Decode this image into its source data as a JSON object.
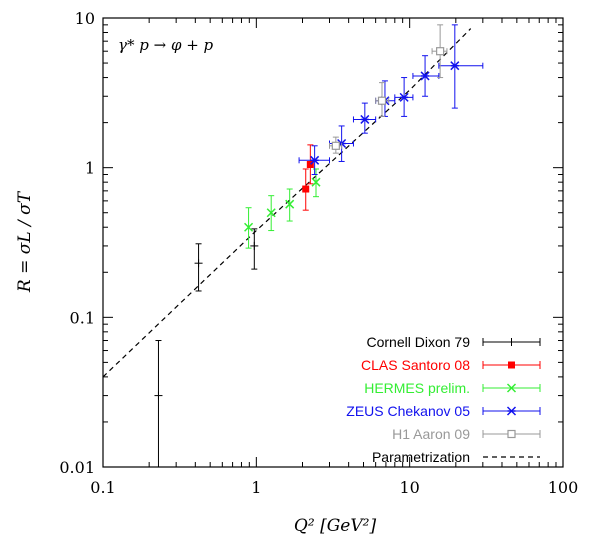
{
  "chart_data": {
    "type": "scatter",
    "title": "",
    "reaction_label": "γ* p → φ + p",
    "xlabel": "Q²   [GeV²]",
    "ylabel": "R = σL / σT",
    "xscale": "log",
    "yscale": "log",
    "xlim": [
      0.1,
      100
    ],
    "ylim": [
      0.01,
      10
    ],
    "xticks": [
      {
        "value": 0.1,
        "label": "0.1"
      },
      {
        "value": 1,
        "label": "1"
      },
      {
        "value": 10,
        "label": "10"
      },
      {
        "value": 100,
        "label": "100"
      }
    ],
    "yticks": [
      {
        "value": 0.01,
        "label": "0.01"
      },
      {
        "value": 0.1,
        "label": "0.1"
      },
      {
        "value": 1,
        "label": "1"
      },
      {
        "value": 10,
        "label": "10"
      }
    ],
    "grid": false,
    "legend_position": "bottom-right",
    "series": [
      {
        "name": "Cornell Dixon 79",
        "color": "#000000",
        "marker": "plus",
        "points": [
          {
            "x": 0.23,
            "y": 0.03,
            "ylo": 0.0,
            "yhi": 0.07
          },
          {
            "x": 0.42,
            "y": 0.23,
            "ylo": 0.15,
            "yhi": 0.31
          },
          {
            "x": 0.97,
            "y": 0.3,
            "ylo": 0.21,
            "yhi": 0.39
          }
        ]
      },
      {
        "name": "CLAS Santoro 08",
        "color": "#ff0000",
        "marker": "filled-square",
        "points": [
          {
            "x": 2.1,
            "y": 0.72,
            "ylo": 0.52,
            "yhi": 0.98
          },
          {
            "x": 2.25,
            "y": 1.05,
            "ylo": 0.78,
            "yhi": 1.42
          }
        ]
      },
      {
        "name": "HERMES prelim.",
        "color": "#33ee33",
        "marker": "x",
        "points": [
          {
            "x": 0.89,
            "y": 0.4,
            "ylo": 0.29,
            "yhi": 0.54
          },
          {
            "x": 1.25,
            "y": 0.5,
            "ylo": 0.38,
            "yhi": 0.65
          },
          {
            "x": 1.65,
            "y": 0.57,
            "ylo": 0.44,
            "yhi": 0.72
          },
          {
            "x": 2.45,
            "y": 0.8,
            "ylo": 0.64,
            "yhi": 0.98
          }
        ]
      },
      {
        "name": "ZEUS Chekanov 05",
        "color": "#1111ee",
        "marker": "star",
        "points": [
          {
            "x": 2.4,
            "y": 1.12,
            "ylo": 0.9,
            "yhi": 1.4,
            "xlo": 1.9,
            "xhi": 3.0
          },
          {
            "x": 3.6,
            "y": 1.45,
            "ylo": 1.1,
            "yhi": 1.9,
            "xlo": 3.0,
            "xhi": 4.3
          },
          {
            "x": 5.1,
            "y": 2.1,
            "ylo": 1.7,
            "yhi": 2.7,
            "xlo": 4.3,
            "xhi": 6.0
          },
          {
            "x": 6.9,
            "y": 2.8,
            "ylo": 2.2,
            "yhi": 3.8,
            "xlo": 6.0,
            "xhi": 8.0
          },
          {
            "x": 9.2,
            "y": 2.95,
            "ylo": 2.2,
            "yhi": 4.0,
            "xlo": 8.0,
            "xhi": 10.5
          },
          {
            "x": 12.6,
            "y": 4.1,
            "ylo": 3.0,
            "yhi": 5.6,
            "xlo": 10.5,
            "xhi": 15.5
          },
          {
            "x": 19.7,
            "y": 4.8,
            "ylo": 2.5,
            "yhi": 9.0,
            "xlo": 15.5,
            "xhi": 30
          }
        ]
      },
      {
        "name": "H1 Aaron 09",
        "color": "#999999",
        "marker": "open-square",
        "points": [
          {
            "x": 3.3,
            "y": 1.4,
            "ylo": 1.25,
            "yhi": 1.6,
            "xlo": 3.0,
            "xhi": 3.6
          },
          {
            "x": 6.6,
            "y": 2.8,
            "ylo": 2.2,
            "yhi": 3.7,
            "xlo": 6.0,
            "xhi": 7.3
          },
          {
            "x": 15.8,
            "y": 6.0,
            "ylo": 4.0,
            "yhi": 9.0,
            "xlo": 14.0,
            "xhi": 17.5
          }
        ]
      },
      {
        "name": "Parametrization",
        "color": "#000000",
        "marker": "dashed-line",
        "line": [
          {
            "x": 0.1,
            "y": 0.04
          },
          {
            "x": 1,
            "y": 0.38
          },
          {
            "x": 10,
            "y": 3.3
          },
          {
            "x": 25,
            "y": 8.5
          }
        ]
      }
    ]
  }
}
